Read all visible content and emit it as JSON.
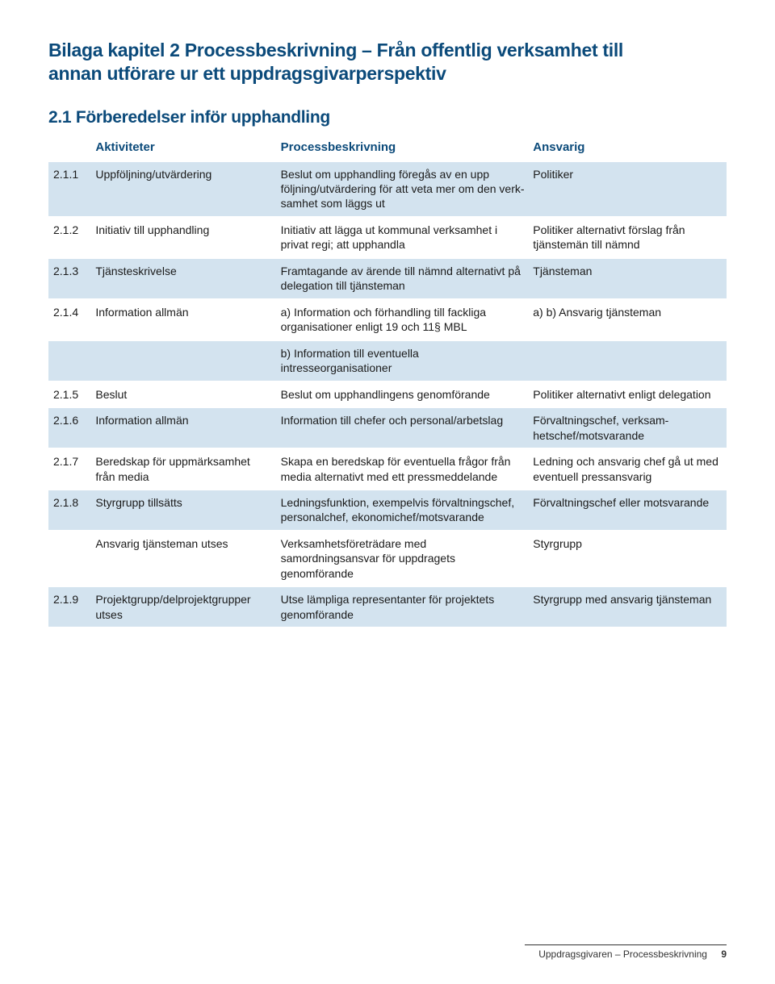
{
  "title_line1": "Bilaga kapitel 2 Processbeskrivning – Från offentlig verksamhet till",
  "title_line2": "annan utförare ur ett uppdragsgivarperspektiv",
  "section_heading": "2.1 Förberedelser inför upphandling",
  "columns": {
    "c1": "",
    "c2": "Aktiviteter",
    "c3": "Processbeskrivning",
    "c4": "Ansvarig"
  },
  "rows": [
    {
      "band": true,
      "num": "2.1.1",
      "act": "Uppföljning/utvärdering",
      "proc": "Beslut om upphandling föregås av en upp följning/utvärdering för att veta mer om den verk­samhet som läggs ut",
      "resp": "Politiker"
    },
    {
      "band": false,
      "num": "2.1.2",
      "act": "Initiativ till upphandling",
      "proc": "Initiativ att lägga ut kommunal verksamhet i privat regi; att upphandla",
      "resp": "Politiker alternativt förslag från tjänstemän till nämnd"
    },
    {
      "band": true,
      "num": "2.1.3",
      "act": "Tjänsteskrivelse",
      "proc": "Framtagande av ärende till nämnd alternativt på delegation till tjänsteman",
      "resp": "Tjänsteman"
    },
    {
      "band": false,
      "num": "2.1.4",
      "act": "Information allmän",
      "proc": "a) Information och förhandling till fackliga organisationer enligt 19 och 11§ MBL",
      "resp": "a) b) Ansvarig tjänsteman"
    },
    {
      "band": true,
      "num": "",
      "act": "",
      "proc": "b) Information till eventuella intresseorganisationer",
      "resp": ""
    },
    {
      "band": false,
      "num": "2.1.5",
      "act": "Beslut",
      "proc": "Beslut om upphandlingens genomförande",
      "resp": "Politiker alternativt enligt delegation"
    },
    {
      "band": true,
      "num": "2.1.6",
      "act": "Information allmän",
      "proc": "Information till chefer och personal/arbetslag",
      "resp": "Förvaltningschef, verksam­hetschef/motsvarande"
    },
    {
      "band": false,
      "num": "2.1.7",
      "act": "Beredskap för upp­märksamhet från media",
      "proc": "Skapa en beredskap för eventu­ella frågor från media alterna­tivt med ett pressmeddelande",
      "resp": "Ledning och ansvarig chef gå ut med eventuell pressansvarig"
    },
    {
      "band": true,
      "num": "2.1.8",
      "act": "Styrgrupp tillsätts",
      "proc": "Ledningsfunktion, exempelvis förvaltningschef, personalchef, ekonomichef/motsvarande",
      "resp": "Förvaltningschef eller motsvarande"
    },
    {
      "band": false,
      "num": "",
      "act": "Ansvarig tjänsteman utses",
      "proc": "Verksamhetsföreträdare med samordningsansvar för uppdragets genomförande",
      "resp": "Styrgrupp"
    },
    {
      "band": true,
      "num": "2.1.9",
      "act": "Projektgrupp/delprojekt­grupper utses",
      "proc": "Utse lämpliga representanter för projektets genomförande",
      "resp": "Styrgrupp med ansvarig tjänsteman"
    }
  ],
  "footer_text": "Uppdragsgivaren – Processbeskrivning",
  "page_number": "9",
  "colors": {
    "heading": "#0b4a7a",
    "band": "#d3e3ef",
    "text": "#1a1a1a",
    "background": "#ffffff"
  }
}
